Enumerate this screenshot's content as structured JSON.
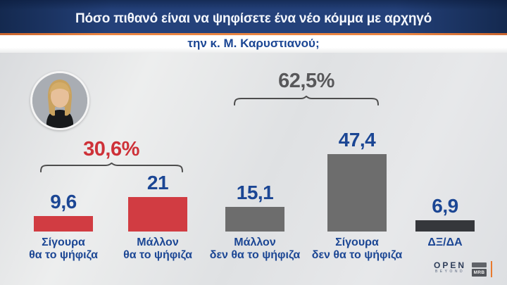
{
  "header": {
    "title": "Πόσο πιθανό είναι να ψηφίσετε ένα νέο κόμμα με αρχηγό",
    "subtitle": "την κ. Μ. Καρυστιανού;"
  },
  "chart_data": {
    "type": "bar",
    "title": "Πόσο πιθανό είναι να ψηφίσετε ένα νέο κόμμα με αρχηγό την κ. Μ. Καρυστιανού;",
    "categories": [
      "Σίγουρα θα το ψήφιζα",
      "Μάλλον θα το ψήφιζα",
      "Μάλλον δεν θα το ψήφιζα",
      "Σίγουρα δεν θα το ψήφιζα",
      "ΔΞ/ΔΑ"
    ],
    "values": [
      9.6,
      21,
      15.1,
      47.4,
      6.9
    ],
    "value_labels": [
      "9,6",
      "21",
      "15,1",
      "47,4",
      "6,9"
    ],
    "bar_colors": [
      "#d13c42",
      "#d13c42",
      "#6d6d6d",
      "#6d6d6d",
      "#35373b"
    ],
    "groups": [
      {
        "label": "30,6%",
        "covers": [
          "Σίγουρα θα το ψήφιζα",
          "Μάλλον θα το ψήφιζα"
        ],
        "color": "#ce3138"
      },
      {
        "label": "62,5%",
        "covers": [
          "Μάλλον δεν θα το ψήφιζα",
          "Σίγουρα δεν θα το ψήφιζα"
        ],
        "color": "#58585a"
      }
    ],
    "ylabel": "",
    "xlabel": "",
    "ylim": [
      0,
      55
    ],
    "grid": false,
    "legend": false
  },
  "bars": [
    {
      "value": "9,6",
      "line1": "Σίγουρα",
      "line2": "θα το ψήφιζα"
    },
    {
      "value": "21",
      "line1": "Μάλλον",
      "line2": "θα το ψήφιζα"
    },
    {
      "value": "15,1",
      "line1": "Μάλλον",
      "line2": "δεν θα το ψήφιζα"
    },
    {
      "value": "47,4",
      "line1": "Σίγουρα",
      "line2": "δεν θα το ψήφιζα"
    },
    {
      "value": "6,9",
      "line1": "ΔΞ/ΔΑ",
      "line2": ""
    }
  ],
  "annotations": {
    "group1": "30,6%",
    "group2": "62,5%"
  },
  "branding": {
    "channel": "OPEN",
    "tagline": "BEYOND",
    "pollster": "MRB"
  }
}
